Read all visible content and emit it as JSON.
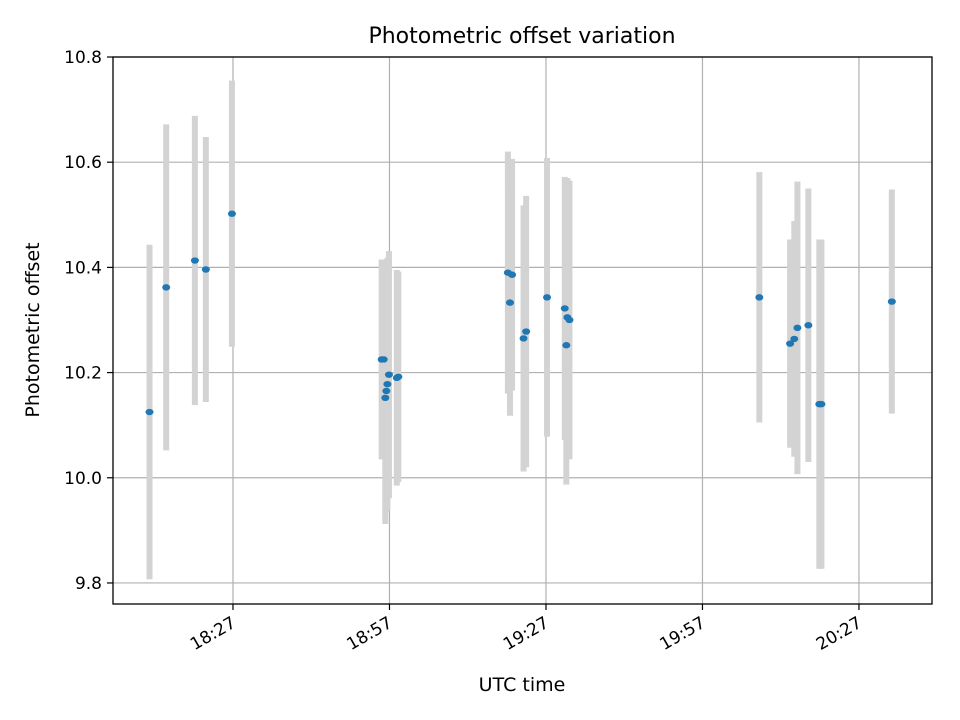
{
  "chart_data": {
    "type": "scatter",
    "title": "Photometric offset variation",
    "xlabel": "UTC time",
    "ylabel": "Photometric offset",
    "xlim": [
      "18:04",
      "20:41"
    ],
    "ylim": [
      9.76,
      10.8
    ],
    "x_ticks": [
      "18:27",
      "18:57",
      "19:27",
      "19:57",
      "20:27"
    ],
    "y_ticks": [
      "9.8",
      "10.0",
      "10.2",
      "10.4",
      "10.6",
      "10.8"
    ],
    "grid": true,
    "colors": {
      "point": "#1f77b4",
      "errorbar": "#d3d3d3",
      "grid": "#b0b0b0"
    },
    "points": [
      {
        "x": "18:11:00",
        "y": 10.125,
        "err": 0.318
      },
      {
        "x": "18:14:12",
        "y": 10.362,
        "err": 0.31
      },
      {
        "x": "18:19:42",
        "y": 10.413,
        "err": 0.275
      },
      {
        "x": "18:21:48",
        "y": 10.396,
        "err": 0.252
      },
      {
        "x": "18:26:48",
        "y": 10.502,
        "err": 0.253
      },
      {
        "x": "18:55:30",
        "y": 10.225,
        "err": 0.19
      },
      {
        "x": "18:55:54",
        "y": 10.225,
        "err": 0.19
      },
      {
        "x": "18:56:12",
        "y": 10.152,
        "err": 0.24
      },
      {
        "x": "18:56:24",
        "y": 10.165,
        "err": 0.23
      },
      {
        "x": "18:56:36",
        "y": 10.178,
        "err": 0.24
      },
      {
        "x": "18:56:54",
        "y": 10.196,
        "err": 0.235
      },
      {
        "x": "18:58:24",
        "y": 10.19,
        "err": 0.205
      },
      {
        "x": "18:58:42",
        "y": 10.192,
        "err": 0.2
      },
      {
        "x": "19:19:42",
        "y": 10.39,
        "err": 0.23
      },
      {
        "x": "19:20:06",
        "y": 10.333,
        "err": 0.215
      },
      {
        "x": "19:20:30",
        "y": 10.386,
        "err": 0.22
      },
      {
        "x": "19:22:42",
        "y": 10.265,
        "err": 0.253
      },
      {
        "x": "19:23:12",
        "y": 10.278,
        "err": 0.258
      },
      {
        "x": "19:27:12",
        "y": 10.343,
        "err": 0.265
      },
      {
        "x": "19:30:36",
        "y": 10.322,
        "err": 0.25
      },
      {
        "x": "19:30:54",
        "y": 10.252,
        "err": 0.265
      },
      {
        "x": "19:31:06",
        "y": 10.305,
        "err": 0.265
      },
      {
        "x": "19:31:30",
        "y": 10.3,
        "err": 0.265
      },
      {
        "x": "20:07:54",
        "y": 10.343,
        "err": 0.238
      },
      {
        "x": "20:13:48",
        "y": 10.255,
        "err": 0.198
      },
      {
        "x": "20:14:36",
        "y": 10.264,
        "err": 0.224
      },
      {
        "x": "20:15:12",
        "y": 10.285,
        "err": 0.278
      },
      {
        "x": "20:17:18",
        "y": 10.29,
        "err": 0.26
      },
      {
        "x": "20:19:24",
        "y": 10.14,
        "err": 0.313
      },
      {
        "x": "20:19:48",
        "y": 10.14,
        "err": 0.313
      },
      {
        "x": "20:33:18",
        "y": 10.335,
        "err": 0.213
      }
    ]
  }
}
